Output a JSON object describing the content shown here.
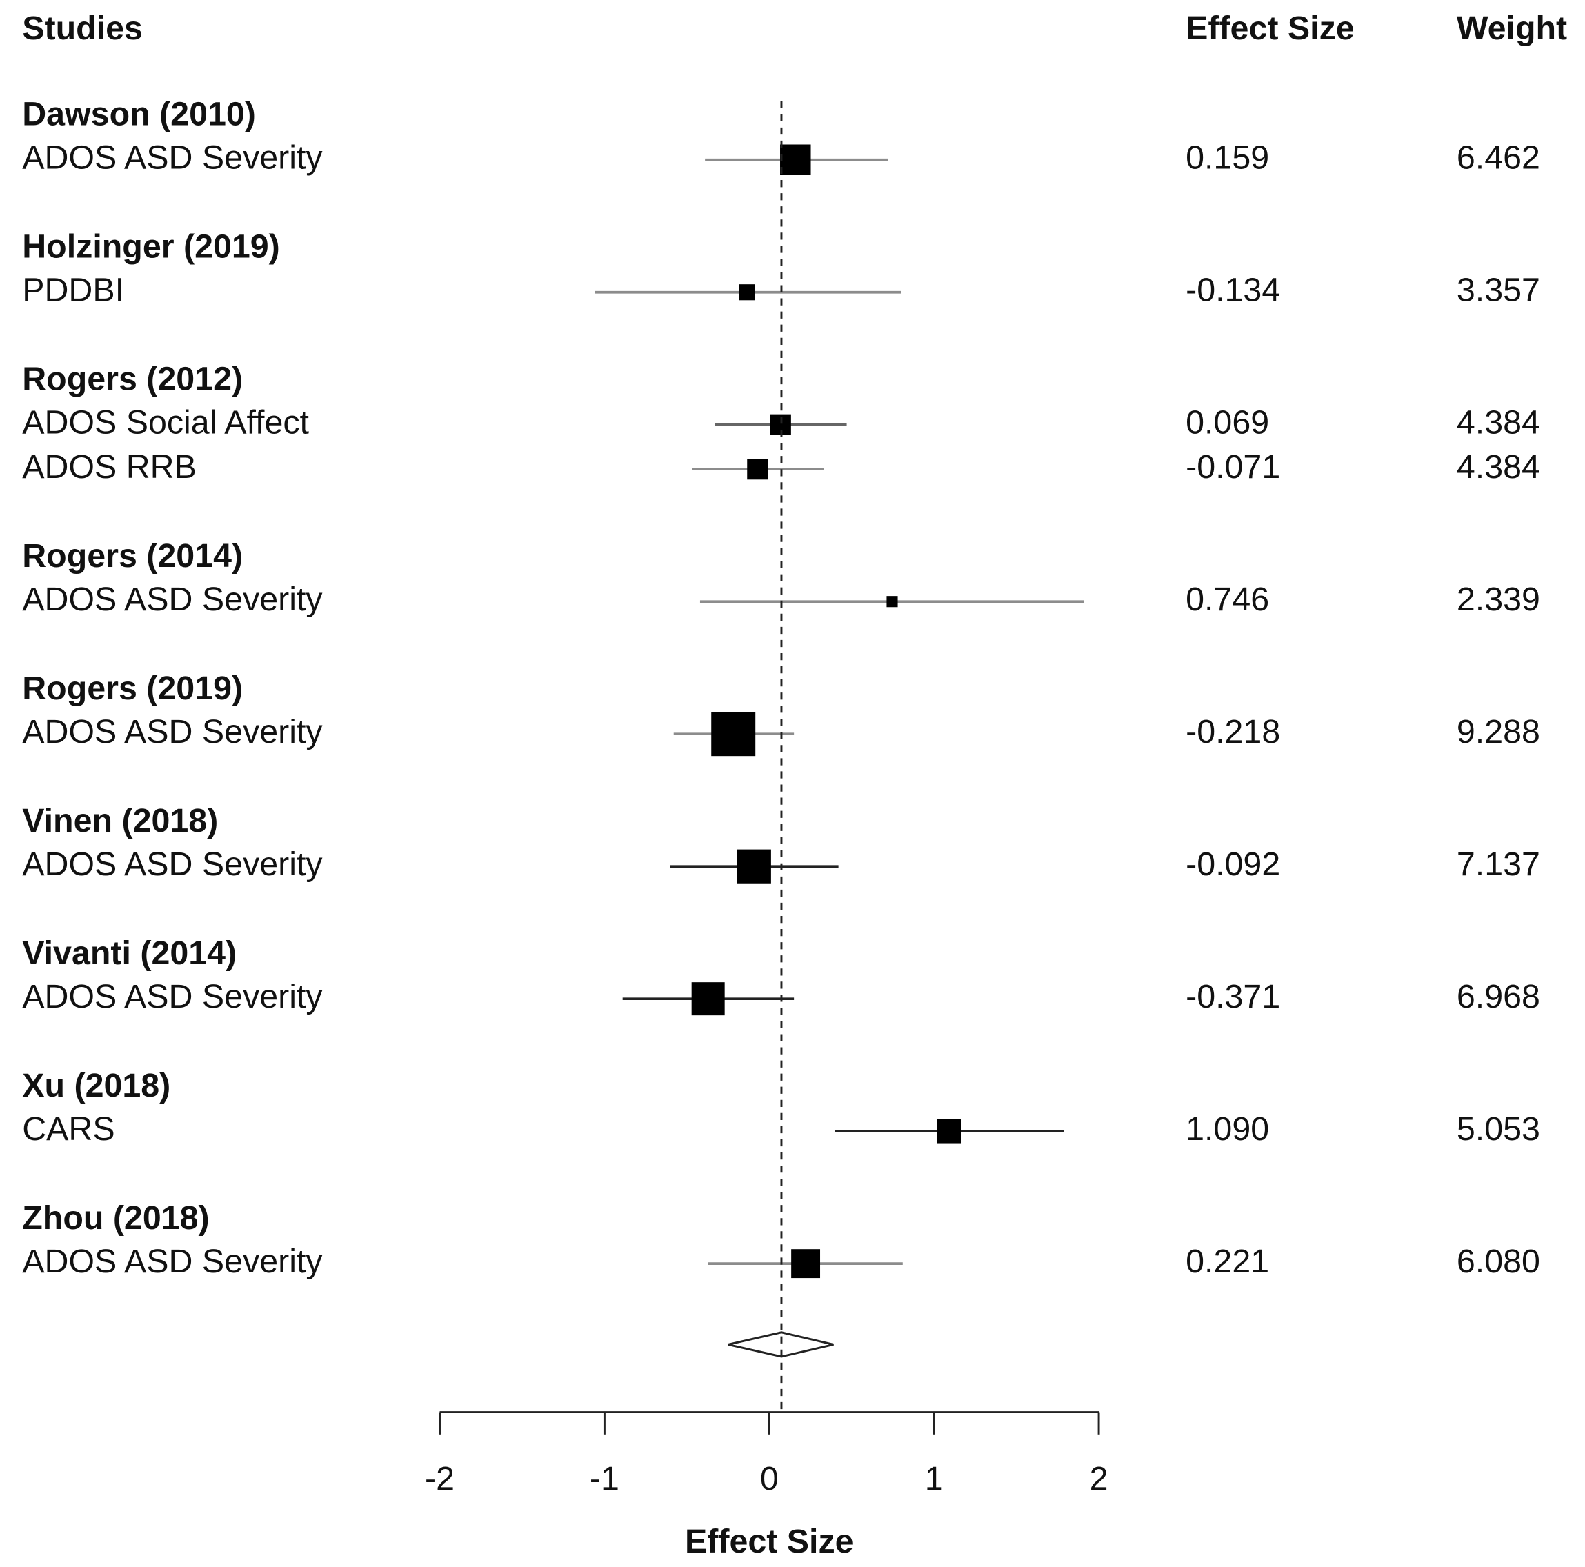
{
  "chart_data": {
    "type": "forest",
    "column_headers": {
      "studies": "Studies",
      "effect": "Effect Size",
      "weight": "Weight"
    },
    "xlabel": "Effect Size",
    "xlim": [
      -2,
      2
    ],
    "xticks": [
      -2,
      -1,
      0,
      1,
      2
    ],
    "square_color": "#000000",
    "groups": [
      {
        "study": "Dawson (2010)",
        "outcomes": [
          {
            "name": "ADOS ASD Severity",
            "effect": 0.159,
            "weight": 6.462,
            "lower": -0.39,
            "upper": 0.72,
            "ci_color": "#8c8c8c"
          }
        ]
      },
      {
        "study": "Holzinger (2019)",
        "outcomes": [
          {
            "name": "PDDBI",
            "effect": -0.134,
            "weight": 3.357,
            "lower": -1.06,
            "upper": 0.8,
            "ci_color": "#8c8c8c"
          }
        ]
      },
      {
        "study": "Rogers (2012)",
        "outcomes": [
          {
            "name": "ADOS Social Affect",
            "effect": 0.069,
            "weight": 4.384,
            "lower": -0.33,
            "upper": 0.47,
            "ci_color": "#666666"
          },
          {
            "name": "ADOS RRB",
            "effect": -0.071,
            "weight": 4.384,
            "lower": -0.47,
            "upper": 0.33,
            "ci_color": "#8c8c8c"
          }
        ]
      },
      {
        "study": "Rogers (2014)",
        "outcomes": [
          {
            "name": "ADOS ASD Severity",
            "effect": 0.746,
            "weight": 2.339,
            "lower": -0.42,
            "upper": 1.91,
            "ci_color": "#8c8c8c"
          }
        ]
      },
      {
        "study": "Rogers (2019)",
        "outcomes": [
          {
            "name": "ADOS ASD Severity",
            "effect": -0.218,
            "weight": 9.288,
            "lower": -0.58,
            "upper": 0.15,
            "ci_color": "#8c8c8c"
          }
        ]
      },
      {
        "study": "Vinen (2018)",
        "outcomes": [
          {
            "name": "ADOS ASD Severity",
            "effect": -0.092,
            "weight": 7.137,
            "lower": -0.6,
            "upper": 0.42,
            "ci_color": "#222222"
          }
        ]
      },
      {
        "study": "Vivanti (2014)",
        "outcomes": [
          {
            "name": "ADOS ASD Severity",
            "effect": -0.371,
            "weight": 6.968,
            "lower": -0.89,
            "upper": 0.15,
            "ci_color": "#222222"
          }
        ]
      },
      {
        "study": "Xu (2018)",
        "outcomes": [
          {
            "name": "CARS",
            "effect": 1.09,
            "effect_label": "1.090",
            "weight": 5.053,
            "lower": 0.4,
            "upper": 1.79,
            "ci_color": "#222222"
          }
        ]
      },
      {
        "study": "Zhou (2018)",
        "outcomes": [
          {
            "name": "ADOS ASD Severity",
            "effect": 0.221,
            "weight": 6.08,
            "weight_label": "6.080",
            "lower": -0.37,
            "upper": 0.81,
            "ci_color": "#8c8c8c"
          }
        ]
      }
    ],
    "summary": {
      "effect": 0.074,
      "lower": -0.25,
      "upper": 0.39
    }
  }
}
